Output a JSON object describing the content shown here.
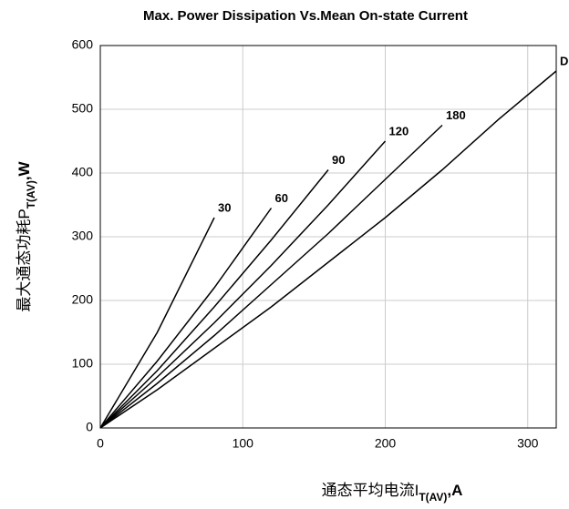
{
  "chart_data": {
    "type": "line",
    "title": "Max. Power Dissipation Vs.Mean On-state Current",
    "y_label": {
      "main": "最大通态功耗P",
      "sub": "T(AV)",
      "unit": ",W"
    },
    "x_label": {
      "main": "通态平均电流I",
      "sub": "T(AV)",
      "unit": ",A"
    },
    "x": [
      0,
      40,
      80,
      120,
      160,
      200,
      240,
      280,
      320
    ],
    "series": [
      {
        "name": "30",
        "color": "#000000",
        "values": [
          0,
          150,
          330,
          null,
          null,
          null,
          null,
          null,
          null
        ]
      },
      {
        "name": "60",
        "color": "#000000",
        "values": [
          0,
          105,
          220,
          345,
          null,
          null,
          null,
          null,
          null
        ]
      },
      {
        "name": "90",
        "color": "#000000",
        "values": [
          0,
          90,
          190,
          295,
          405,
          null,
          null,
          null,
          null
        ]
      },
      {
        "name": "120",
        "color": "#000000",
        "values": [
          0,
          80,
          165,
          255,
          350,
          450,
          null,
          null,
          null
        ]
      },
      {
        "name": "180",
        "color": "#000000",
        "values": [
          0,
          70,
          145,
          225,
          305,
          390,
          475,
          null,
          null
        ]
      },
      {
        "name": "DC",
        "color": "#000000",
        "values": [
          0,
          60,
          125,
          190,
          260,
          330,
          405,
          485,
          560
        ]
      }
    ],
    "xlim": [
      0,
      320
    ],
    "ylim": [
      0,
      600
    ],
    "xticks": [
      0,
      100,
      200,
      300
    ],
    "yticks": [
      0,
      100,
      200,
      300,
      400,
      500,
      600
    ],
    "grid": true
  }
}
